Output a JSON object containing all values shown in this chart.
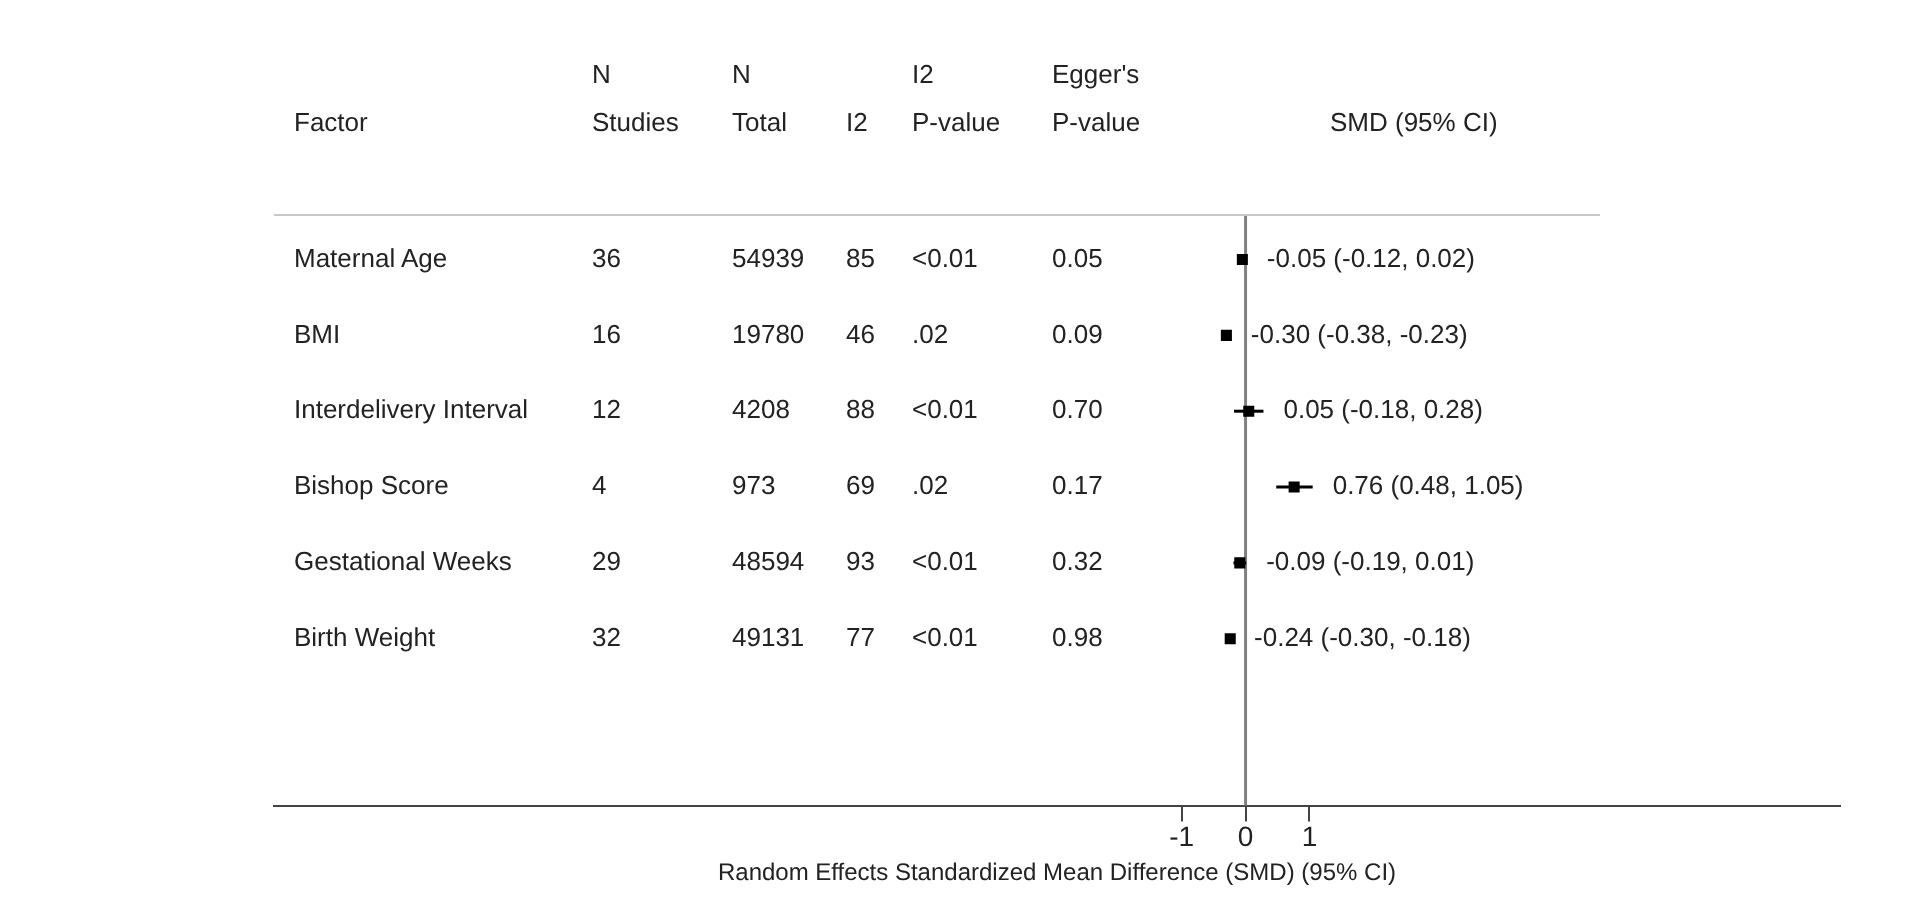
{
  "chart_data": {
    "type": "scatter",
    "orientation": "horizontal",
    "ylabel": "Factor",
    "xlabel": "Random Effects Standardized Mean Difference (SMD) (95% CI)",
    "categories": [
      "Maternal Age",
      "BMI",
      "Interdelivery Interval",
      "Bishop Score",
      "Gestational Weeks",
      "Birth Weight"
    ],
    "values": [
      -0.05,
      -0.3,
      0.05,
      0.76,
      -0.09,
      -0.24
    ],
    "errors": [
      [
        -0.12,
        0.02
      ],
      [
        -0.38,
        -0.23
      ],
      [
        -0.18,
        0.28
      ],
      [
        0.48,
        1.05
      ],
      [
        -0.19,
        0.01
      ],
      [
        -0.3,
        -0.18
      ]
    ],
    "value_labels": [
      "-0.05 (-0.12, 0.02)",
      "-0.30 (-0.38, -0.23)",
      "0.05 (-0.18, 0.28)",
      "0.76 (0.48, 1.05)",
      "-0.09 (-0.19, 0.01)",
      "-0.24 (-0.30, -0.18)"
    ],
    "color": "#000000",
    "marker": "square",
    "grid": false,
    "legend": false,
    "xlim": [
      -15.2,
      9.3
    ],
    "xticks": [
      -1,
      0,
      1
    ],
    "ref_lines": [
      {
        "axis": "x",
        "value": 0,
        "color": "#808080"
      }
    ],
    "annotations": [
      "N\nStudies",
      "N\nTotal",
      "I2",
      "I2\nP-value",
      "Egger's\nP-value",
      "SMD (95% CI)",
      "36",
      "54939",
      "85",
      "<0.01",
      "0.05",
      "16",
      "19780",
      "46",
      ".02",
      "0.09",
      "12",
      "4208",
      "88",
      "<0.01",
      "0.70",
      "4",
      "973",
      "69",
      ".02",
      "0.17",
      "29",
      "48594",
      "93",
      "<0.01",
      "0.32",
      "32",
      "49131",
      "77",
      "<0.01",
      "0.98"
    ]
  }
}
